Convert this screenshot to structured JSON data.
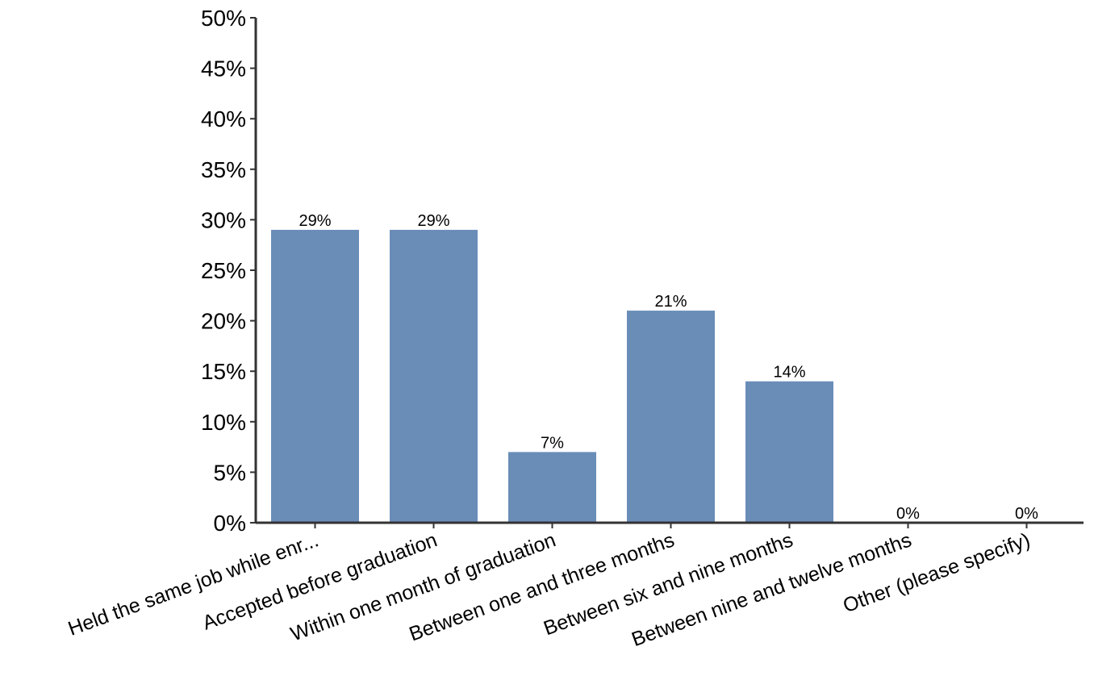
{
  "chart_data": {
    "type": "bar",
    "categories": [
      "Held the same job while enr...",
      "Accepted before graduation",
      "Within one month of graduation",
      "Between one and three months",
      "Between six and nine months",
      "Between nine and twelve months",
      "Other (please specify)"
    ],
    "values": [
      29,
      29,
      7,
      21,
      14,
      0,
      0
    ],
    "data_labels": [
      "29%",
      "29%",
      "7%",
      "21%",
      "14%",
      "0%",
      "0%"
    ],
    "ylim": [
      0,
      50
    ],
    "yticks": [
      0,
      5,
      10,
      15,
      20,
      25,
      30,
      35,
      40,
      45,
      50
    ],
    "ytick_labels": [
      "0%",
      "5%",
      "10%",
      "15%",
      "20%",
      "25%",
      "30%",
      "35%",
      "40%",
      "45%",
      "50%"
    ],
    "grid": false,
    "legend": "none",
    "bar_color": "#6a8db8",
    "axis_color": "#333333"
  }
}
